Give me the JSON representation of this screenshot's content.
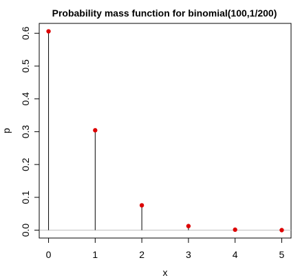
{
  "chart_data": {
    "type": "scatter",
    "title": "Probability mass function for binomial(100,1/200)",
    "xlabel": "x",
    "ylabel": "p",
    "x": [
      0,
      1,
      2,
      3,
      4,
      5
    ],
    "series": [
      {
        "values": [
          0.6058,
          0.3044,
          0.0757,
          0.0124,
          0.0015,
          0.0001
        ]
      }
    ],
    "xlim": [
      -0.2,
      5.2
    ],
    "ylim": [
      -0.024,
      0.63
    ],
    "x_ticks": [
      0,
      1,
      2,
      3,
      4,
      5
    ],
    "x_tick_labels": [
      "0",
      "1",
      "2",
      "3",
      "4",
      "5"
    ],
    "y_ticks": [
      0.0,
      0.1,
      0.2,
      0.3,
      0.4,
      0.5,
      0.6
    ],
    "y_tick_labels": [
      "0.0",
      "0.1",
      "0.2",
      "0.3",
      "0.4",
      "0.5",
      "0.6"
    ],
    "grid": false,
    "legend": "none",
    "reference_line_y": 0,
    "colors": {
      "point": "#dd0000",
      "stem": "#000000",
      "reference_line": "#bfbfbf",
      "box": "#000000"
    }
  }
}
